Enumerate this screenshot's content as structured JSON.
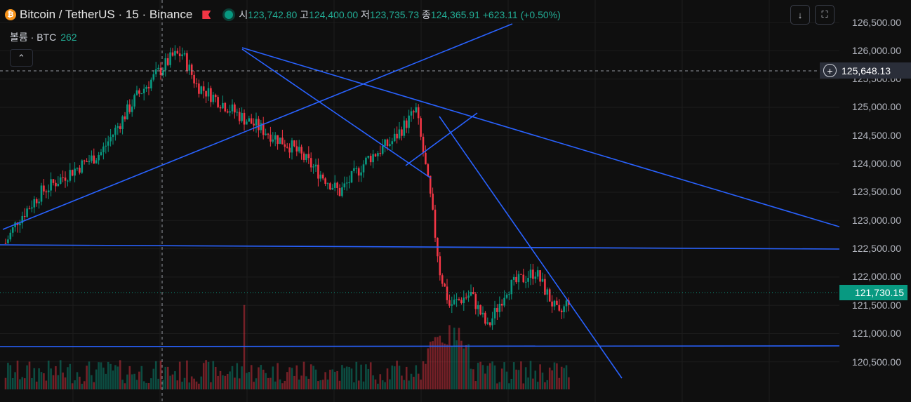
{
  "header": {
    "symbol": "Bitcoin / TetherUS · 15 · Binance",
    "coin_glyph": "₿",
    "ohlc": {
      "open_label": "시",
      "open": "123,742.80",
      "high_label": "고",
      "high": "124,400.00",
      "low_label": "저",
      "low": "123,735.73",
      "close_label": "종",
      "close": "124,365.91",
      "change": "+623.11 (+0.50%)"
    }
  },
  "volume": {
    "label": "볼륨 · BTC",
    "value": "262"
  },
  "buttons": {
    "collapse_glyph": "⌃",
    "down_glyph": "↓",
    "fullscreen_glyph": "⛶"
  },
  "price_axis": {
    "ticks": [
      "126,500.00",
      "126,000.00",
      "125,500.00",
      "125,000.00",
      "124,500.00",
      "124,000.00",
      "123,500.00",
      "123,000.00",
      "122,500.00",
      "122,000.00",
      "121,500.00",
      "121,000.00",
      "120,500.00"
    ],
    "crosshair_price": "125,648.13",
    "last_price": "121,730.15"
  },
  "cut_text": "",
  "colors": {
    "up": "#089981",
    "down": "#f23645",
    "drawing": "#2962ff",
    "background": "#0f0f0f"
  },
  "icons": [
    "bitcoin-icon",
    "flag-icon",
    "status-dot-icon",
    "chevron-up-icon",
    "arrow-down-icon",
    "fullscreen-icon",
    "crosshair-plus-icon"
  ]
}
